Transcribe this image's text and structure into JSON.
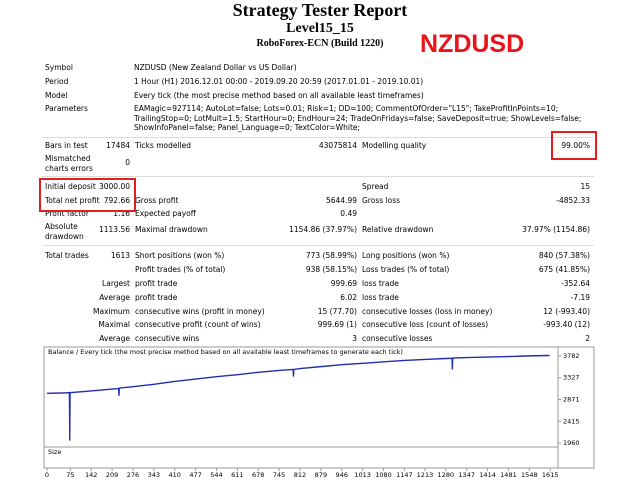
{
  "header": {
    "title": "Strategy Tester Report",
    "subtitle": "Level15_15",
    "server": "RoboForex-ECN (Build 1220)",
    "badge": "NZDUSD"
  },
  "table": {
    "rows": [
      [
        "Symbol",
        "NZDUSD (New Zealand Dollar vs US Dollar)"
      ],
      [
        "Period",
        "1 Hour (H1) 2016.12.01 00:00 - 2019.09.20 20:59 (2017.01.01 - 2019.10.01)"
      ],
      [
        "Model",
        "Every tick (the most precise method based on all available least timeframes)"
      ],
      [
        "Parameters",
        "EAMagic=927114; AutoLot=false; Lots=0.01; Risk=1; DD=100; CommentOfOrder=\"L15\"; TakeProfitInPoints=10; TrailingStop=0; LotMult=1.5; StartHour=0; EndHour=24; TradeOnFridays=false; SaveDeposit=true; ShowLevels=false; ShowInfoPanel=false; Panel_Language=0; TextColor=White;"
      ],
      [
        "Bars in test",
        "17484",
        "Ticks modelled",
        "43075814",
        "Modelling quality",
        "99.00%"
      ],
      [
        "Mismatched charts errors",
        "0"
      ],
      [
        "Initial deposit",
        "3000.00",
        null,
        null,
        "Spread",
        "15"
      ],
      [
        "Total net profit",
        "792.66",
        "Gross profit",
        "5644.99",
        "Gross loss",
        "-4852.33"
      ],
      [
        "Profit factor",
        "1.16",
        "Expected payoff",
        "0.49",
        null,
        null
      ],
      [
        "Absolute drawdown",
        "1113.56",
        "Maximal drawdown",
        "1154.86 (37.97%)",
        "Relative drawdown",
        "37.97% (1154.86)"
      ],
      [
        "Total trades",
        "1613",
        "Short positions (won %)",
        "773 (58.99%)",
        "Long positions (won %)",
        "840 (57.38%)"
      ],
      [
        null,
        null,
        "Profit trades (% of total)",
        "938 (58.15%)",
        "Loss trades (% of total)",
        "675 (41.85%)"
      ],
      [
        null,
        "Largest",
        "profit trade",
        "999.69",
        "loss trade",
        "-352.64"
      ],
      [
        null,
        "Average",
        "profit trade",
        "6.02",
        "loss trade",
        "-7.19"
      ],
      [
        null,
        "Maximum",
        "consecutive wins (profit in money)",
        "15 (77.70)",
        "consecutive losses (loss in money)",
        "12 (-993.40)"
      ],
      [
        null,
        "Maximal",
        "consecutive profit (count of wins)",
        "999.69 (1)",
        "consecutive loss (count of losses)",
        "-993.40 (12)"
      ],
      [
        null,
        "Average",
        "consecutive wins",
        "3",
        "consecutive losses",
        "2"
      ]
    ]
  },
  "chart_data": {
    "type": "line",
    "title": "Balance / Every tick (the most precise method based on all available least timeframes to generate each tick)",
    "subplot_label": "Size",
    "x": [
      0,
      60,
      72,
      73,
      74,
      142,
      209,
      230,
      231,
      232,
      276,
      343,
      410,
      477,
      544,
      611,
      678,
      745,
      790,
      791,
      792,
      812,
      879,
      946,
      1013,
      1080,
      1147,
      1213,
      1280,
      1300,
      1301,
      1302,
      1347,
      1414,
      1481,
      1548,
      1613
    ],
    "series": [
      {
        "name": "Balance",
        "color": "#1f2fb0",
        "values": [
          3000,
          3010,
          3015,
          2010,
          3015,
          3050,
          3090,
          3100,
          2950,
          3110,
          3140,
          3190,
          3250,
          3300,
          3350,
          3390,
          3440,
          3480,
          3500,
          3350,
          3500,
          3520,
          3560,
          3600,
          3630,
          3660,
          3690,
          3710,
          3730,
          3735,
          3500,
          3740,
          3750,
          3760,
          3770,
          3785,
          3793
        ]
      }
    ],
    "xlim": [
      0,
      1640
    ],
    "ylim": [
      1918,
      3950
    ],
    "xticks": [
      0,
      75,
      142,
      209,
      276,
      343,
      410,
      477,
      544,
      611,
      678,
      745,
      812,
      879,
      946,
      1013,
      1080,
      1147,
      1213,
      1280,
      1347,
      1414,
      1481,
      1548,
      1615
    ],
    "yticks": [
      1960,
      2415,
      2871,
      3327,
      3782
    ]
  }
}
